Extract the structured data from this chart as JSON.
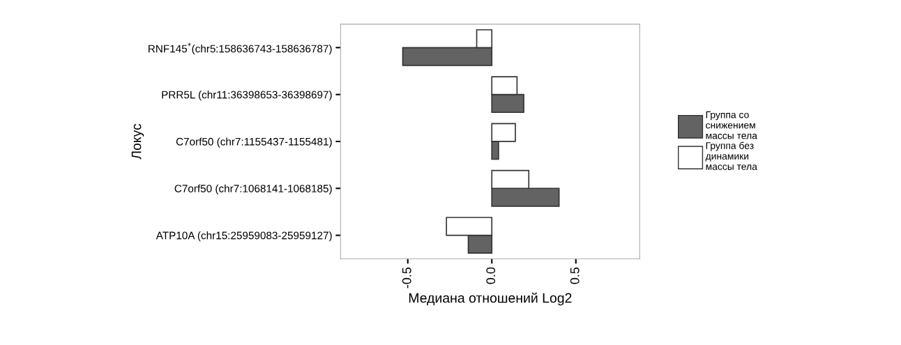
{
  "chart_data": {
    "type": "bar",
    "orientation": "horizontal",
    "xlabel": "Медиана отношений Log2",
    "ylabel": "Локус",
    "categories": [
      "RNF145$^{*}$(chr5:158636743-158636787)",
      "PRR5L (chr11:36398653-36398697)",
      "C7orf50 (chr7:1155437-1155481)",
      "C7orf50 (chr7:1068141-1068185)",
      "ATP10A (chr15:25959083-25959127)"
    ],
    "series": [
      {
        "name": "Группа со снижением массы тела",
        "color": "#636363",
        "values": [
          -0.53,
          0.19,
          0.04,
          0.4,
          -0.14
        ]
      },
      {
        "name": "Группа без динамики массы тела",
        "color": "#ffffff",
        "values": [
          -0.09,
          0.15,
          0.14,
          0.22,
          -0.27
        ]
      }
    ],
    "xlim": [
      -0.9,
      0.88
    ],
    "xticks": [
      {
        "value": -0.5,
        "label": "-0.5"
      },
      {
        "value": 0,
        "label": "0.0"
      },
      {
        "value": 0.5,
        "label": "0.5"
      }
    ],
    "grid": false,
    "legend": "right"
  }
}
